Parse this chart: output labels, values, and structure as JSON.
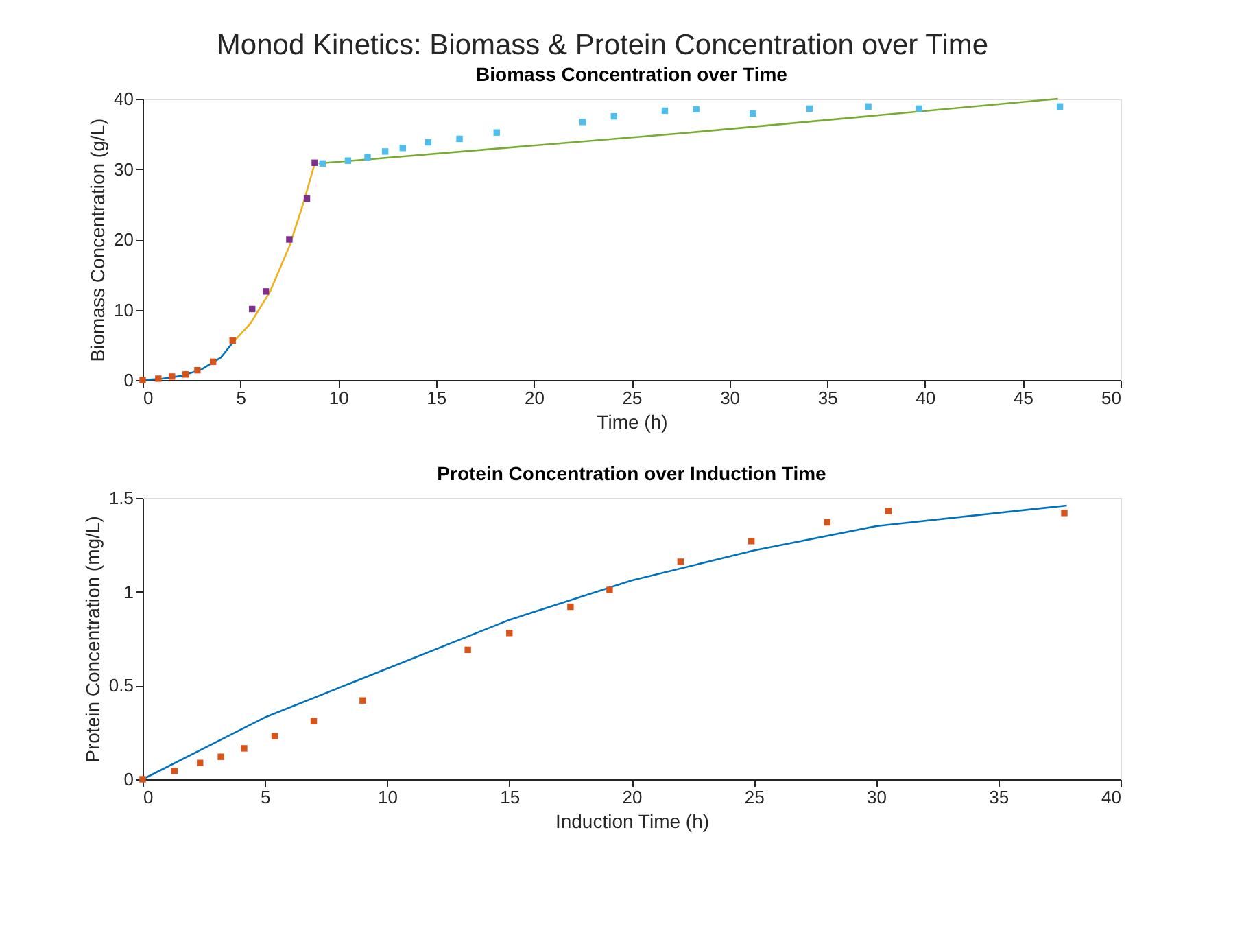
{
  "chart_data": [
    {
      "type": "scatter",
      "title": "Monod Kinetics: Biomass & Protein Concentration over Time",
      "subtitle": "Biomass Concentration over Time",
      "xlabel": "Time (h)",
      "ylabel": "Biomass Concentration (g/L)",
      "xlim": [
        0,
        50
      ],
      "xticks": [
        0,
        5,
        10,
        15,
        20,
        25,
        30,
        35,
        40,
        45,
        50
      ],
      "ylim": [
        0,
        40
      ],
      "yticks": [
        0,
        10,
        20,
        30,
        40
      ],
      "grid": false,
      "series": [
        {
          "type": "line",
          "color": "#0072bd",
          "x": [
            0,
            1,
            2,
            3,
            4,
            4.6
          ],
          "values": [
            0,
            0.2,
            0.6,
            1.5,
            3.2,
            5.3
          ]
        },
        {
          "type": "line",
          "color": "#edb120",
          "x": [
            4.6,
            5.5,
            6.5,
            7.5,
            8.2,
            8.8
          ],
          "values": [
            5.3,
            8,
            12.5,
            19,
            25,
            30.8
          ]
        },
        {
          "type": "line",
          "color": "#77ac30",
          "x": [
            9,
            28,
            46.8
          ],
          "values": [
            30.8,
            35.2,
            40
          ]
        },
        {
          "marker": "square",
          "color": "#d95319",
          "x": [
            0,
            0.8,
            1.5,
            2.2,
            2.8,
            3.6,
            4.6
          ],
          "values": [
            0,
            0.2,
            0.5,
            0.8,
            1.4,
            2.6,
            5.6
          ]
        },
        {
          "marker": "square",
          "color": "#7e2f8e",
          "x": [
            5.6,
            6.3,
            7.5,
            8.4,
            8.8
          ],
          "values": [
            10.1,
            12.6,
            20,
            25.8,
            30.9
          ]
        },
        {
          "marker": "square",
          "color": "#4dbeee",
          "x": [
            9.2,
            10.5,
            11.5,
            12.4,
            13.3,
            14.6,
            16.2,
            18.1,
            22.5,
            24.1,
            26.7,
            28.3,
            31.2,
            34.1,
            37.1,
            39.7,
            46.9
          ],
          "values": [
            30.8,
            31.2,
            31.7,
            32.5,
            33.0,
            33.8,
            34.3,
            35.2,
            36.7,
            37.5,
            38.3,
            38.5,
            37.9,
            38.6,
            38.9,
            38.6,
            38.9
          ]
        }
      ]
    },
    {
      "type": "scatter",
      "title": "Protein Concentration over Induction Time",
      "xlabel": "Induction Time (h)",
      "ylabel": "Protein Concentration (mg/L)",
      "xlim": [
        0,
        40
      ],
      "xticks": [
        0,
        5,
        10,
        15,
        20,
        25,
        30,
        35,
        40
      ],
      "ylim": [
        0,
        1.5
      ],
      "yticks": [
        0,
        0.5,
        1,
        1.5
      ],
      "grid": false,
      "series": [
        {
          "type": "line",
          "color": "#0072bd",
          "x": [
            0,
            5,
            10,
            15,
            20,
            25,
            30,
            37.8
          ],
          "values": [
            0,
            0.33,
            0.59,
            0.85,
            1.06,
            1.22,
            1.35,
            1.46
          ]
        },
        {
          "marker": "square",
          "color": "#d95319",
          "x": [
            0,
            1.3,
            2.35,
            3.2,
            4.15,
            5.4,
            7.0,
            9.0,
            13.3,
            15.0,
            17.5,
            19.1,
            22.0,
            24.9,
            28.0,
            30.5,
            37.7
          ],
          "values": [
            0,
            0.045,
            0.087,
            0.12,
            0.165,
            0.23,
            0.31,
            0.42,
            0.69,
            0.78,
            0.92,
            1.01,
            1.16,
            1.27,
            1.37,
            1.43,
            1.42
          ]
        }
      ]
    }
  ]
}
